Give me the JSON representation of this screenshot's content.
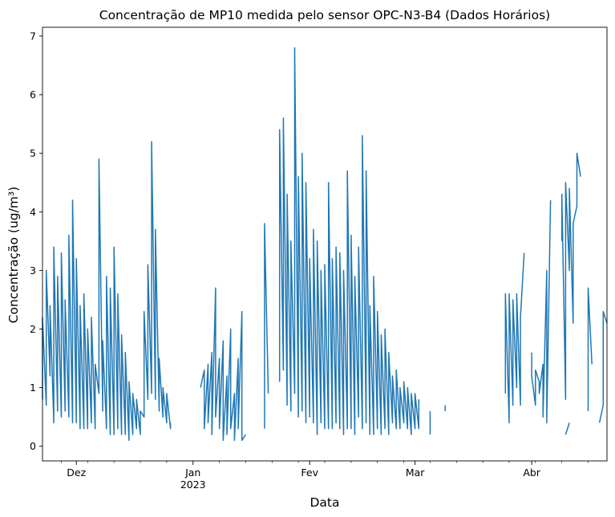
{
  "chart_data": {
    "type": "line",
    "title": "Concentração de MP10 medida pelo sensor OPC-N3-B4 (Dados Horários)",
    "xlabel": "Data",
    "ylabel": "Concentração (ug/m³)",
    "xlim": [
      "2022-11-22",
      "2023-04-21"
    ],
    "ylim": [
      -0.25,
      7.15
    ],
    "yticks": [
      0,
      1,
      2,
      3,
      4,
      5,
      6,
      7
    ],
    "xticks": [
      {
        "date": "2022-12-01",
        "label": "Dez"
      },
      {
        "date": "2023-01-01",
        "label": "Jan",
        "sublabel": "2023"
      },
      {
        "date": "2023-02-01",
        "label": "Fev"
      },
      {
        "date": "2023-03-01",
        "label": "Mar"
      },
      {
        "date": "2023-04-01",
        "label": "Abr"
      }
    ],
    "minor_ticks": [
      "2022-11-27",
      "2022-12-04",
      "2022-12-11",
      "2022-12-18",
      "2022-12-25",
      "2023-01-08",
      "2023-01-15",
      "2023-01-22",
      "2023-01-29",
      "2023-02-05",
      "2023-02-12",
      "2023-02-19",
      "2023-02-26",
      "2023-03-05",
      "2023-03-12",
      "2023-03-19",
      "2023-03-26",
      "2023-04-02",
      "2023-04-09",
      "2023-04-16"
    ],
    "grid": false,
    "color": "#1f77b4",
    "series": [
      {
        "segments": [
          {
            "x": [
              "2022-11-22",
              "2022-11-22",
              "2022-11-23",
              "2022-11-23",
              "2022-11-24",
              "2022-11-24",
              "2022-11-25",
              "2022-11-25",
              "2022-11-26",
              "2022-11-26",
              "2022-11-27",
              "2022-11-27",
              "2022-11-28",
              "2022-11-28",
              "2022-11-29",
              "2022-11-29",
              "2022-11-30",
              "2022-11-30",
              "2022-12-01",
              "2022-12-01",
              "2022-12-02",
              "2022-12-02",
              "2022-12-03",
              "2022-12-03",
              "2022-12-04",
              "2022-12-04",
              "2022-12-05",
              "2022-12-05",
              "2022-12-06",
              "2022-12-06",
              "2022-12-07",
              "2022-12-07",
              "2022-12-08",
              "2022-12-08",
              "2022-12-09",
              "2022-12-09",
              "2022-12-10",
              "2022-12-10",
              "2022-12-11",
              "2022-12-11",
              "2022-12-12",
              "2022-12-12",
              "2022-12-13",
              "2022-12-13",
              "2022-12-14",
              "2022-12-14",
              "2022-12-15",
              "2022-12-15",
              "2022-12-16",
              "2022-12-16",
              "2022-12-17",
              "2022-12-17",
              "2022-12-18",
              "2022-12-18",
              "2022-12-19",
              "2022-12-19",
              "2022-12-20",
              "2022-12-20",
              "2022-12-21",
              "2022-12-21",
              "2022-12-22",
              "2022-12-22",
              "2022-12-23",
              "2022-12-23",
              "2022-12-24",
              "2022-12-24",
              "2022-12-25",
              "2022-12-25",
              "2022-12-26",
              "2022-12-26"
            ],
            "y": [
              0.8,
              2.2,
              0.7,
              3.0,
              1.2,
              2.4,
              0.4,
              3.4,
              0.6,
              2.9,
              0.5,
              3.3,
              0.6,
              2.5,
              0.5,
              3.6,
              0.4,
              4.2,
              0.4,
              3.2,
              0.3,
              2.4,
              0.3,
              2.6,
              0.3,
              2.0,
              0.4,
              2.2,
              0.3,
              1.4,
              0.9,
              4.9,
              0.6,
              1.8,
              0.3,
              2.9,
              0.2,
              2.7,
              0.2,
              3.4,
              0.3,
              2.6,
              0.2,
              1.9,
              0.2,
              1.6,
              0.1,
              1.1,
              0.2,
              0.9,
              0.3,
              0.8,
              0.2,
              0.6,
              0.5,
              2.3,
              0.8,
              3.1,
              0.9,
              5.2,
              0.8,
              3.7,
              0.6,
              1.5,
              0.5,
              1.0,
              0.4,
              0.9,
              0.3,
              0.4
            ]
          },
          {
            "x": [
              "2023-01-03",
              "2023-01-04",
              "2023-01-04",
              "2023-01-05",
              "2023-01-05",
              "2023-01-06",
              "2023-01-06",
              "2023-01-07",
              "2023-01-07",
              "2023-01-08",
              "2023-01-08",
              "2023-01-09",
              "2023-01-09",
              "2023-01-10",
              "2023-01-10",
              "2023-01-11",
              "2023-01-11",
              "2023-01-12",
              "2023-01-12",
              "2023-01-13",
              "2023-01-13",
              "2023-01-14",
              "2023-01-14",
              "2023-01-15"
            ],
            "y": [
              1.0,
              1.3,
              0.3,
              1.4,
              0.4,
              1.6,
              0.2,
              2.7,
              0.5,
              1.5,
              0.3,
              1.8,
              0.1,
              1.2,
              0.2,
              2.0,
              0.3,
              0.9,
              0.1,
              1.5,
              0.3,
              2.3,
              0.1,
              0.2
            ]
          },
          {
            "x": [
              "2023-01-20",
              "2023-01-20",
              "2023-01-21"
            ],
            "y": [
              0.3,
              3.8,
              0.9
            ]
          },
          {
            "x": [
              "2023-01-24",
              "2023-01-24",
              "2023-01-25",
              "2023-01-25",
              "2023-01-26",
              "2023-01-26",
              "2023-01-27",
              "2023-01-27",
              "2023-01-28",
              "2023-01-28",
              "2023-01-29",
              "2023-01-29",
              "2023-01-30",
              "2023-01-30",
              "2023-01-31",
              "2023-01-31",
              "2023-02-01",
              "2023-02-01",
              "2023-02-02",
              "2023-02-02",
              "2023-02-03",
              "2023-02-03",
              "2023-02-04",
              "2023-02-04",
              "2023-02-05",
              "2023-02-05",
              "2023-02-06",
              "2023-02-06",
              "2023-02-07",
              "2023-02-07",
              "2023-02-08",
              "2023-02-08",
              "2023-02-09",
              "2023-02-09",
              "2023-02-10",
              "2023-02-10",
              "2023-02-11",
              "2023-02-11",
              "2023-02-12",
              "2023-02-12",
              "2023-02-13",
              "2023-02-13",
              "2023-02-14",
              "2023-02-14",
              "2023-02-15",
              "2023-02-15",
              "2023-02-16",
              "2023-02-16",
              "2023-02-17",
              "2023-02-17",
              "2023-02-18",
              "2023-02-18",
              "2023-02-19",
              "2023-02-19",
              "2023-02-20",
              "2023-02-20",
              "2023-02-21",
              "2023-02-21",
              "2023-02-22",
              "2023-02-22",
              "2023-02-23",
              "2023-02-23",
              "2023-02-24",
              "2023-02-24",
              "2023-02-25",
              "2023-02-25",
              "2023-02-26",
              "2023-02-26",
              "2023-02-27",
              "2023-02-27",
              "2023-02-28",
              "2023-02-28",
              "2023-03-01",
              "2023-03-01",
              "2023-03-02",
              "2023-03-02"
            ],
            "y": [
              1.1,
              5.4,
              1.3,
              5.6,
              0.7,
              4.3,
              0.6,
              3.5,
              0.9,
              6.8,
              0.5,
              4.6,
              0.6,
              5.0,
              0.4,
              4.5,
              0.5,
              3.2,
              0.4,
              3.7,
              0.2,
              3.5,
              0.4,
              3.0,
              0.3,
              3.1,
              0.3,
              4.5,
              0.3,
              3.2,
              0.4,
              3.4,
              0.3,
              3.3,
              0.2,
              3.0,
              0.3,
              4.7,
              0.3,
              3.6,
              0.2,
              2.9,
              0.5,
              3.4,
              0.3,
              5.3,
              0.4,
              4.7,
              0.2,
              2.4,
              0.2,
              2.9,
              0.3,
              2.3,
              0.2,
              1.9,
              0.3,
              2.0,
              0.2,
              1.6,
              0.4,
              1.2,
              0.3,
              1.3,
              0.3,
              1.0,
              0.4,
              1.1,
              0.3,
              1.0,
              0.2,
              0.9,
              0.3,
              0.9,
              0.3,
              0.8
            ]
          },
          {
            "x": [
              "2023-03-05",
              "2023-03-05"
            ],
            "y": [
              0.2,
              0.6
            ]
          },
          {
            "x": [
              "2023-03-09",
              "2023-03-09"
            ],
            "y": [
              0.6,
              0.7
            ]
          },
          {
            "x": [
              "2023-03-25",
              "2023-03-25",
              "2023-03-26",
              "2023-03-26",
              "2023-03-27",
              "2023-03-27",
              "2023-03-28",
              "2023-03-28",
              "2023-03-29",
              "2023-03-29",
              "2023-03-30"
            ],
            "y": [
              0.9,
              2.6,
              0.4,
              2.6,
              0.7,
              2.5,
              1.0,
              2.6,
              0.7,
              2.2,
              3.3
            ]
          },
          {
            "x": [
              "2023-04-01",
              "2023-04-01",
              "2023-04-02",
              "2023-04-02",
              "2023-04-03",
              "2023-04-03",
              "2023-04-04",
              "2023-04-04",
              "2023-04-05",
              "2023-04-05",
              "2023-04-06"
            ],
            "y": [
              1.6,
              1.2,
              0.7,
              1.3,
              1.1,
              0.9,
              1.4,
              0.5,
              3.0,
              0.4,
              4.2
            ]
          },
          {
            "x": [
              "2023-04-09",
              "2023-04-09",
              "2023-04-10",
              "2023-04-10",
              "2023-04-11",
              "2023-04-11",
              "2023-04-12",
              "2023-04-12",
              "2023-04-13",
              "2023-04-13",
              "2023-04-14"
            ],
            "y": [
              3.5,
              4.3,
              0.8,
              4.5,
              3.0,
              4.4,
              2.1,
              3.8,
              4.1,
              5.0,
              4.6
            ]
          },
          {
            "x": [
              "2023-04-10",
              "2023-04-11"
            ],
            "y": [
              0.2,
              0.4
            ]
          },
          {
            "x": [
              "2023-04-16",
              "2023-04-16",
              "2023-04-17"
            ],
            "y": [
              0.6,
              2.7,
              1.4
            ]
          },
          {
            "x": [
              "2023-04-19",
              "2023-04-20",
              "2023-04-20",
              "2023-04-21"
            ],
            "y": [
              0.4,
              0.7,
              2.3,
              2.1
            ]
          }
        ]
      }
    ]
  }
}
